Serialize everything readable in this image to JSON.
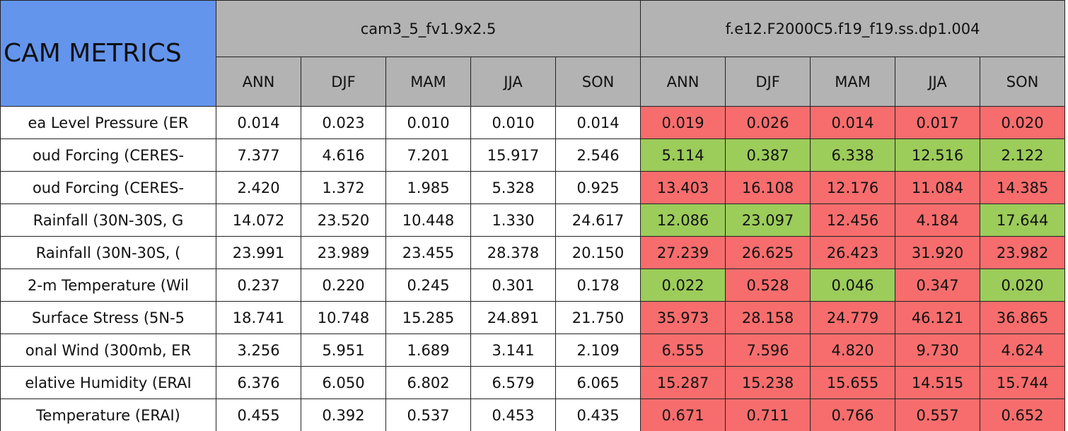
{
  "table": {
    "corner": "CAM METRICS",
    "groups": [
      "cam3_5_fv1.9x2.5",
      "f.e12.F2000C5.f19_f19.ss.dp1.004"
    ],
    "seasons": [
      "ANN",
      "DJF",
      "MAM",
      "JJA",
      "SON"
    ],
    "header_color": "#b3b3b3",
    "corner_color": "#6495ed",
    "rows": [
      {
        "label": "ea Level Pressure (ER",
        "values": [
          "0.014",
          "0.023",
          "0.010",
          "0.010",
          "0.014",
          "0.019",
          "0.026",
          "0.014",
          "0.017",
          "0.020"
        ],
        "colors": [
          "#f76d6d",
          "#f76d6d",
          "#f76d6d",
          "#f76d6d",
          "#f76d6d"
        ]
      },
      {
        "label": "oud Forcing (CERES-",
        "values": [
          "7.377",
          "4.616",
          "7.201",
          "15.917",
          "2.546",
          "5.114",
          "0.387",
          "6.338",
          "12.516",
          "2.122"
        ],
        "colors": [
          "#9ccc5a",
          "#9ccc5a",
          "#9ccc5a",
          "#9ccc5a",
          "#9ccc5a"
        ]
      },
      {
        "label": "oud Forcing (CERES-",
        "values": [
          "2.420",
          "1.372",
          "1.985",
          "5.328",
          "0.925",
          "13.403",
          "16.108",
          "12.176",
          "11.084",
          "14.385"
        ],
        "colors": [
          "#f76d6d",
          "#f76d6d",
          "#f76d6d",
          "#f76d6d",
          "#f76d6d"
        ]
      },
      {
        "label": " Rainfall (30N-30S, G",
        "values": [
          "14.072",
          "23.520",
          "10.448",
          "1.330",
          "24.617",
          "12.086",
          "23.097",
          "12.456",
          "4.184",
          "17.644"
        ],
        "colors": [
          "#9ccc5a",
          "#9ccc5a",
          "#f76d6d",
          "#f76d6d",
          "#9ccc5a"
        ]
      },
      {
        "label": " Rainfall (30N-30S, (",
        "values": [
          "23.991",
          "23.989",
          "23.455",
          "28.378",
          "20.150",
          "27.239",
          "26.625",
          "26.423",
          "31.920",
          "23.982"
        ],
        "colors": [
          "#f76d6d",
          "#f76d6d",
          "#f76d6d",
          "#f76d6d",
          "#f76d6d"
        ]
      },
      {
        "label": "2-m Temperature (Wil",
        "values": [
          "0.237",
          "0.220",
          "0.245",
          "0.301",
          "0.178",
          "0.022",
          "0.528",
          "0.046",
          "0.347",
          "0.020"
        ],
        "colors": [
          "#9ccc5a",
          "#f76d6d",
          "#9ccc5a",
          "#f76d6d",
          "#9ccc5a"
        ]
      },
      {
        "label": "Surface Stress (5N-5",
        "values": [
          "18.741",
          "10.748",
          "15.285",
          "24.891",
          "21.750",
          "35.973",
          "28.158",
          "24.779",
          "46.121",
          "36.865"
        ],
        "colors": [
          "#f76d6d",
          "#f76d6d",
          "#f76d6d",
          "#f76d6d",
          "#f76d6d"
        ]
      },
      {
        "label": "onal Wind (300mb, ER",
        "values": [
          "3.256",
          "5.951",
          "1.689",
          "3.141",
          "2.109",
          "6.555",
          "7.596",
          "4.820",
          "9.730",
          "4.624"
        ],
        "colors": [
          "#f76d6d",
          "#f76d6d",
          "#f76d6d",
          "#f76d6d",
          "#f76d6d"
        ]
      },
      {
        "label": "elative Humidity (ERAI",
        "values": [
          "6.376",
          "6.050",
          "6.802",
          "6.579",
          "6.065",
          "15.287",
          "15.238",
          "15.655",
          "14.515",
          "15.744"
        ],
        "colors": [
          "#f76d6d",
          "#f76d6d",
          "#f76d6d",
          "#f76d6d",
          "#f76d6d"
        ]
      },
      {
        "label": "Temperature (ERAI)",
        "values": [
          "0.455",
          "0.392",
          "0.537",
          "0.453",
          "0.435",
          "0.671",
          "0.711",
          "0.766",
          "0.557",
          "0.652"
        ],
        "colors": [
          "#f76d6d",
          "#f76d6d",
          "#f76d6d",
          "#f76d6d",
          "#f76d6d"
        ]
      }
    ]
  }
}
